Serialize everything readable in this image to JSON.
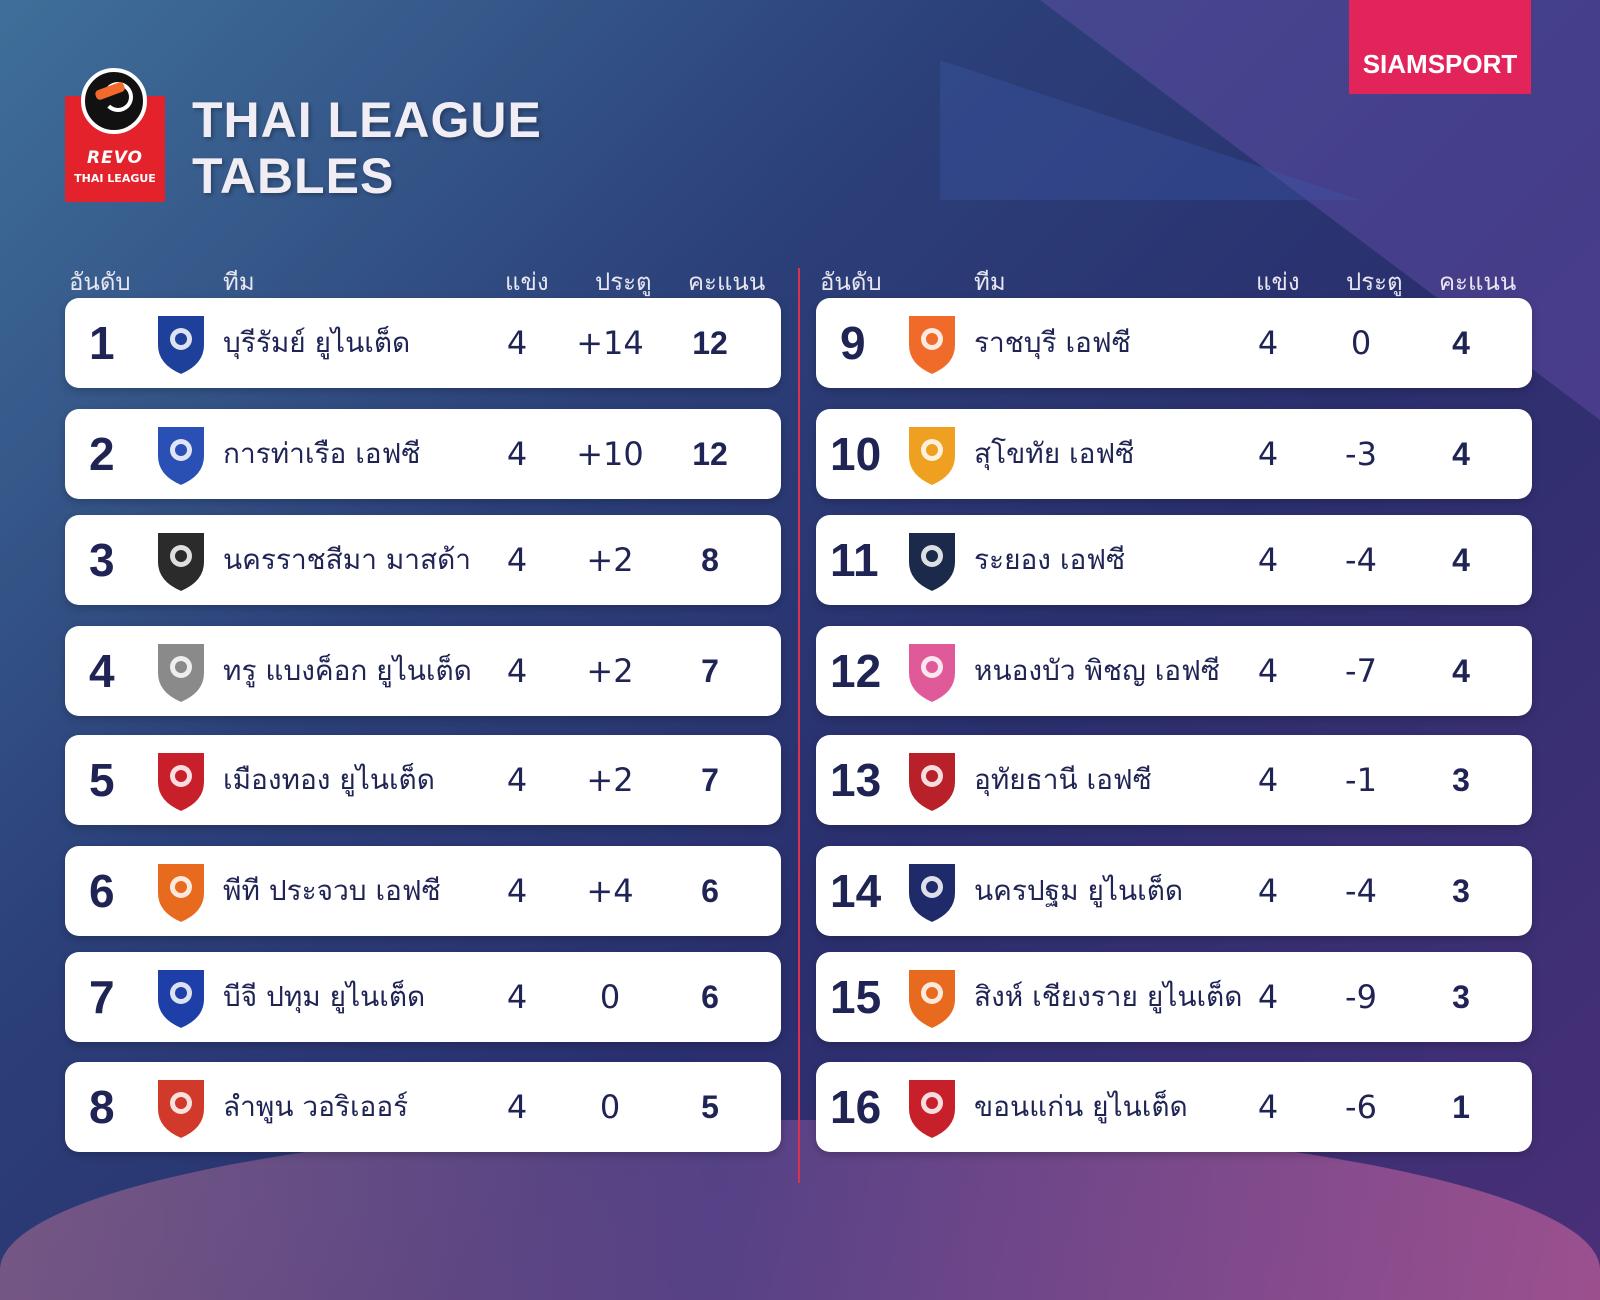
{
  "header": {
    "logo_line1": "REVO",
    "logo_line2": "THAI LEAGUE",
    "title_line1": "THAI LEAGUE",
    "title_line2": "TABLES",
    "brand": "SIAMSPORT"
  },
  "columns": {
    "rank": "อันดับ",
    "team": "ทีม",
    "played": "แข่ง",
    "goals": "ประตู",
    "points": "คะแนน"
  },
  "left_table": [
    {
      "rank": "1",
      "team": "บุรีรัมย์ ยูไนเต็ด",
      "played": "4",
      "goal_diff": "+14",
      "points": "12",
      "crest_color": "#1e3f9a",
      "crest_icon": "buriram-crest-icon"
    },
    {
      "rank": "2",
      "team": "การท่าเรือ เอฟซี",
      "played": "4",
      "goal_diff": "+10",
      "points": "12",
      "crest_color": "#2a4fb5",
      "crest_icon": "port-fc-crest-icon"
    },
    {
      "rank": "3",
      "team": "นครราชสีมา มาสด้า",
      "played": "4",
      "goal_diff": "+2",
      "points": "8",
      "crest_color": "#2b2b2b",
      "crest_icon": "nakhon-ratchasima-crest-icon"
    },
    {
      "rank": "4",
      "team": "ทรู แบงค็อก ยูไนเต็ด",
      "played": "4",
      "goal_diff": "+2",
      "points": "7",
      "crest_color": "#8a8a8a",
      "crest_icon": "true-bangkok-crest-icon"
    },
    {
      "rank": "5",
      "team": "เมืองทอง ยูไนเต็ด",
      "played": "4",
      "goal_diff": "+2",
      "points": "7",
      "crest_color": "#c8202a",
      "crest_icon": "muangthong-crest-icon"
    },
    {
      "rank": "6",
      "team": "พีที ประจวบ เอฟซี",
      "played": "4",
      "goal_diff": "+4",
      "points": "6",
      "crest_color": "#e86a1e",
      "crest_icon": "pt-prachuap-crest-icon"
    },
    {
      "rank": "7",
      "team": "บีจี ปทุม ยูไนเต็ด",
      "played": "4",
      "goal_diff": "0",
      "points": "6",
      "crest_color": "#1f3fa8",
      "crest_icon": "bg-pathum-crest-icon"
    },
    {
      "rank": "8",
      "team": "ลำพูน วอริเออร์",
      "played": "4",
      "goal_diff": "0",
      "points": "5",
      "crest_color": "#d13a2a",
      "crest_icon": "lamphun-crest-icon"
    }
  ],
  "right_table": [
    {
      "rank": "9",
      "team": "ราชบุรี เอฟซี",
      "played": "4",
      "goal_diff": "0",
      "points": "4",
      "crest_color": "#f06a2a",
      "crest_icon": "ratchaburi-crest-icon"
    },
    {
      "rank": "10",
      "team": "สุโขทัย เอฟซี",
      "played": "4",
      "goal_diff": "-3",
      "points": "4",
      "crest_color": "#f0a020",
      "crest_icon": "sukhothai-crest-icon"
    },
    {
      "rank": "11",
      "team": "ระยอง เอฟซี",
      "played": "4",
      "goal_diff": "-4",
      "points": "4",
      "crest_color": "#1b2a4a",
      "crest_icon": "rayong-crest-icon"
    },
    {
      "rank": "12",
      "team": "หนองบัว พิชญ เอฟซี",
      "played": "4",
      "goal_diff": "-7",
      "points": "4",
      "crest_color": "#e05a9a",
      "crest_icon": "nongbua-crest-icon"
    },
    {
      "rank": "13",
      "team": "อุทัยธานี เอฟซี",
      "played": "4",
      "goal_diff": "-1",
      "points": "3",
      "crest_color": "#b8202a",
      "crest_icon": "uthaithani-crest-icon"
    },
    {
      "rank": "14",
      "team": "นครปฐม ยูไนเต็ด",
      "played": "4",
      "goal_diff": "-4",
      "points": "3",
      "crest_color": "#1f2a6a",
      "crest_icon": "nakhon-pathom-crest-icon"
    },
    {
      "rank": "15",
      "team": "สิงห์ เชียงราย ยูไนเต็ด",
      "played": "4",
      "goal_diff": "-9",
      "points": "3",
      "crest_color": "#e86a1e",
      "crest_icon": "chiangrai-crest-icon"
    },
    {
      "rank": "16",
      "team": "ขอนแก่น ยูไนเต็ด",
      "played": "4",
      "goal_diff": "-6",
      "points": "1",
      "crest_color": "#c8202a",
      "crest_icon": "khonkaen-crest-icon"
    }
  ]
}
